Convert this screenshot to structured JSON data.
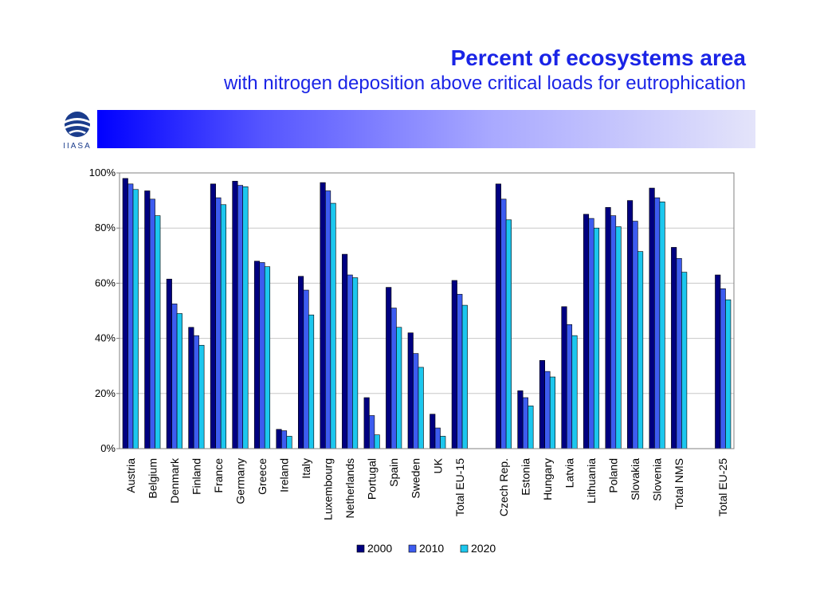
{
  "page": {
    "title": "Percent of ecosystems area",
    "subtitle": "with nitrogen deposition above critical loads for eutrophication",
    "logo_text": "IIASA"
  },
  "chart_data": {
    "type": "bar",
    "categories": [
      "Austria",
      "Belgium",
      "Denmark",
      "Finland",
      "France",
      "Germany",
      "Greece",
      "Ireland",
      "Italy",
      "Luxembourg",
      "Netherlands",
      "Portugal",
      "Spain",
      "Sweden",
      "UK",
      "Total EU-15",
      "",
      "Czech Rep.",
      "Estonia",
      "Hungary",
      "Latvia",
      "Lithuania",
      "Poland",
      "Slovakia",
      "Slovenia",
      "Total NMS",
      "",
      "Total EU-25"
    ],
    "series": [
      {
        "name": "2000",
        "color": "#000080",
        "values": [
          98,
          93.5,
          61.5,
          44,
          96,
          97,
          68,
          7,
          62.5,
          96.5,
          70.5,
          18.5,
          58.5,
          42,
          12.5,
          61,
          null,
          96,
          21,
          32,
          51.5,
          85,
          87.5,
          90,
          94.5,
          73,
          null,
          63
        ]
      },
      {
        "name": "2010",
        "color": "#3d5cf0",
        "values": [
          96,
          90.5,
          52.5,
          41,
          91,
          95.5,
          67.5,
          6.5,
          57.5,
          93.5,
          63,
          12,
          51,
          34.5,
          7.5,
          56,
          null,
          90.5,
          18.5,
          28,
          45,
          83.5,
          84.5,
          82.5,
          91,
          69,
          null,
          58
        ]
      },
      {
        "name": "2020",
        "color": "#1cc7ee",
        "values": [
          94,
          84.5,
          49,
          37.5,
          88.5,
          95,
          66,
          4.5,
          48.5,
          89,
          62,
          5,
          44,
          29.5,
          4.5,
          52,
          null,
          83,
          15.5,
          26,
          41,
          80,
          80.5,
          71.5,
          89.5,
          64,
          null,
          54
        ]
      }
    ],
    "ylim": [
      0,
      100
    ],
    "yticks": [
      0,
      20,
      40,
      60,
      80,
      100
    ],
    "ytick_labels": [
      "0%",
      "20%",
      "40%",
      "60%",
      "80%",
      "100%"
    ],
    "xlabel": "",
    "ylabel": "",
    "grid": true,
    "legend": "bottom"
  }
}
